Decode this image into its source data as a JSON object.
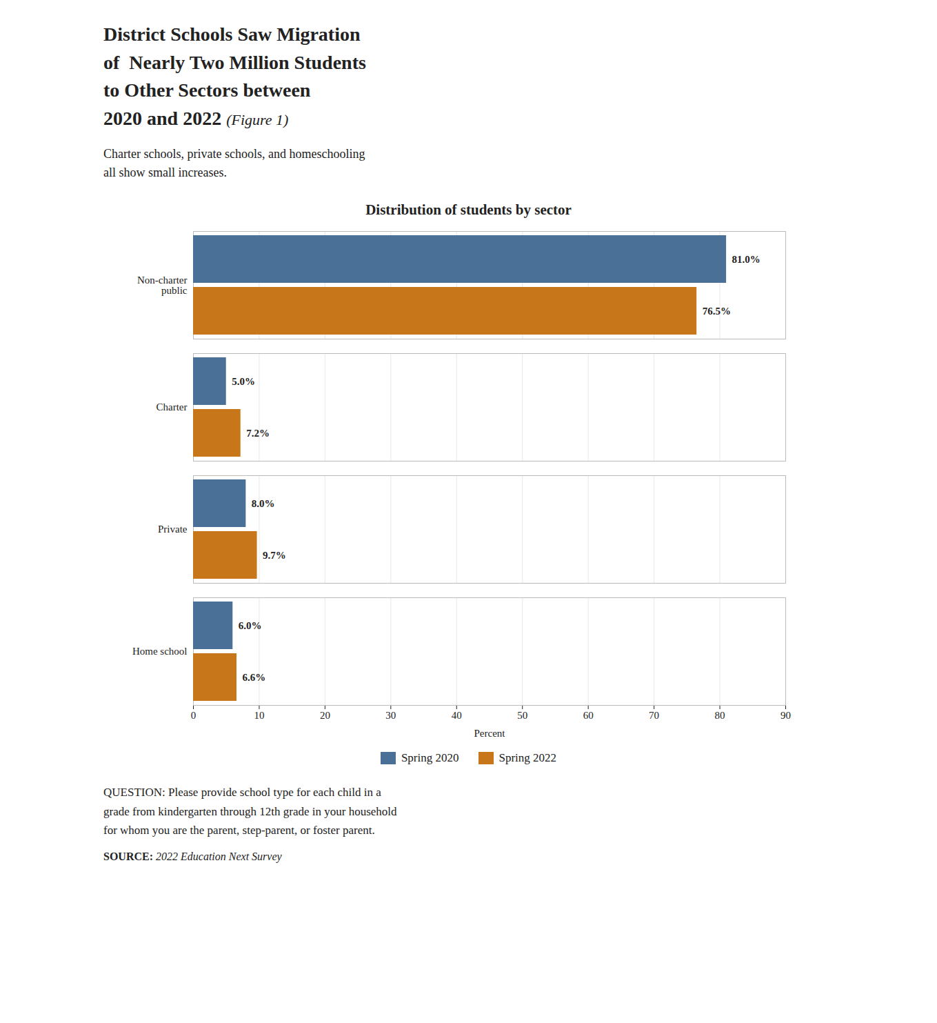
{
  "chart_data": {
    "type": "bar",
    "orientation": "horizontal",
    "title": "District Schools Saw Migration\nof  Nearly Two Million Students\nto Other Sectors between\n2020 and 2022",
    "subtitle": "Charter schools, private schools, and homeschooling\nall show small increases.",
    "annotations": [
      "(Figure 1)",
      "Distribution of students by sector",
      "QUESTION: Please provide school type for each child in a\ngrade from kindergarten through 12th grade in your household\nfor whom you are the parent, step-parent, or foster parent.",
      "SOURCE:",
      "2022 Education Next Survey"
    ],
    "categories": [
      "Non-charter\npublic",
      "Charter",
      "Private",
      "Home school"
    ],
    "series": [
      {
        "name": "Spring 2020",
        "color": "#4a7098",
        "values": [
          81.0,
          5.0,
          8.0,
          6.0
        ],
        "value_labels": [
          "81.0%",
          "5.0%",
          "8.0%",
          "6.0%"
        ]
      },
      {
        "name": "Spring 2022",
        "color": "#c8761a",
        "values": [
          76.5,
          7.2,
          9.7,
          6.6
        ],
        "value_labels": [
          "76.5%",
          "7.2%",
          "9.7%",
          "6.6%"
        ]
      }
    ],
    "xlim": [
      0,
      90
    ],
    "xticks": [
      0,
      10,
      20,
      30,
      40,
      50,
      60,
      70,
      80,
      90
    ],
    "xlabel": "Percent",
    "grid": true,
    "legend": "bottom",
    "data_labels": true
  }
}
